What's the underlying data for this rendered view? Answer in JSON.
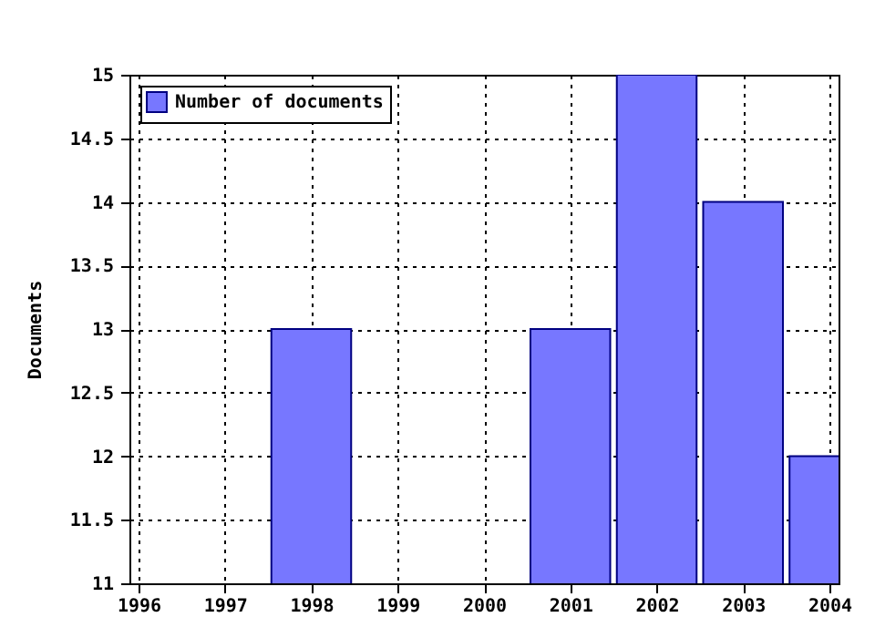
{
  "chart_data": {
    "type": "bar",
    "ylabel": "Documents",
    "x": [
      1998,
      2001,
      2002,
      2003,
      2004
    ],
    "series": [
      {
        "name": "Number of documents",
        "color": "#7777ff",
        "values": [
          13,
          13,
          15,
          14,
          12
        ]
      }
    ],
    "xlim": [
      1996,
      2004
    ],
    "xticks": [
      1996,
      1997,
      1998,
      1999,
      2000,
      2001,
      2002,
      2003,
      2004
    ],
    "ylim": [
      11,
      15
    ],
    "yticks": [
      11,
      11.5,
      12,
      12.5,
      13,
      13.5,
      14,
      14.5,
      15
    ],
    "grid": true,
    "legend": "top left"
  }
}
